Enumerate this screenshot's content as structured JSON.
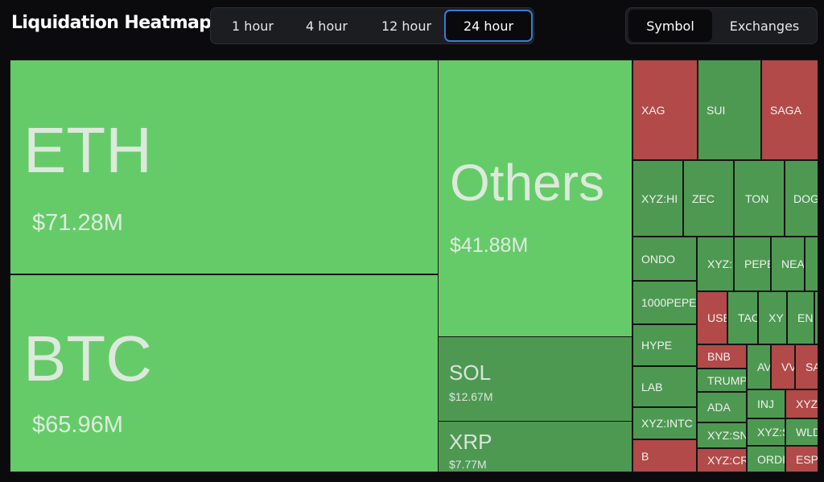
{
  "header": {
    "title": "Liquidation Heatmap",
    "timeframes": [
      "1 hour",
      "4 hour",
      "12 hour",
      "24 hour"
    ],
    "active_timeframe": "24 hour",
    "views": [
      "Symbol",
      "Exchanges"
    ],
    "active_view": "Symbol"
  },
  "colors": {
    "large_tile": "#65cb69",
    "medium_tile": "#4e9952",
    "short_tile": "#b24a49",
    "background": "#0b0b0d",
    "active_border": "#3a7bd5"
  },
  "tiles": {
    "eth": {
      "symbol": "ETH",
      "value": "$71.28M"
    },
    "btc": {
      "symbol": "BTC",
      "value": "$65.96M"
    },
    "others": {
      "symbol": "Others",
      "value": "$41.88M"
    },
    "sol": {
      "symbol": "SOL",
      "value": "$12.67M"
    },
    "xrp": {
      "symbol": "XRP",
      "value": "$7.77M"
    },
    "xag": "XAG",
    "sui": "SUI",
    "saga": "SAGA",
    "xyzhi": "XYZ:HI",
    "zec": "ZEC",
    "ton": "TON",
    "dog": "DOG",
    "ondo": "ONDO",
    "xyz1": "XYZ:",
    "pepe": "PEPE",
    "nea": "NEA",
    "pepe1000": "1000PEPE",
    "use": "USE",
    "tac": "TAC",
    "xy": "XY",
    "en": "EN",
    "hype": "HYPE",
    "bnb": "BNB",
    "av": "AV",
    "vv": "VV",
    "sa": "SA",
    "lab": "LAB",
    "trump": "TRUMP",
    "inj": "INJ",
    "xyz2": "XYZ:",
    "xyzintc": "XYZ:INTC",
    "ada": "ADA",
    "xyzs": "XYZ:S",
    "wld": "WLD",
    "xyzsn": "XYZ:SN",
    "b": "B",
    "xyzcr": "XYZ:CR",
    "ordi": "ORDI",
    "esp": "ESP"
  }
}
